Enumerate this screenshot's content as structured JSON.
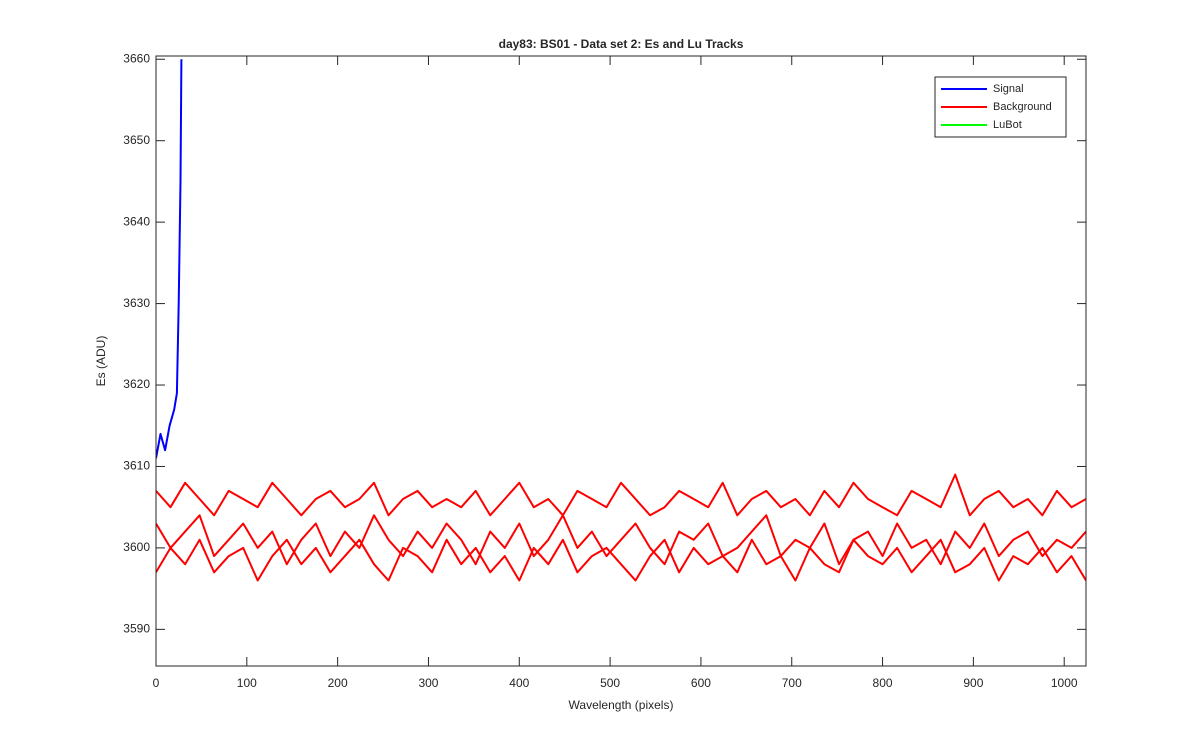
{
  "chart_data": {
    "type": "line",
    "title": "day83: BS01 - Data set 2: Es and Lu Tracks",
    "xlabel": "Wavelength (pixels)",
    "ylabel": "Es (ADU)",
    "xlim": [
      0,
      1024
    ],
    "ylim": [
      3585.5,
      3660.4
    ],
    "xticks": [
      0,
      100,
      200,
      300,
      400,
      500,
      600,
      700,
      800,
      900,
      1000
    ],
    "yticks": [
      3590,
      3600,
      3610,
      3620,
      3630,
      3640,
      3650,
      3660
    ],
    "grid": false,
    "legend": "northeast",
    "x": [
      0,
      16,
      32,
      48,
      64,
      80,
      96,
      112,
      128,
      144,
      160,
      176,
      192,
      208,
      224,
      240,
      256,
      272,
      288,
      304,
      320,
      336,
      352,
      368,
      384,
      400,
      416,
      432,
      448,
      464,
      480,
      496,
      512,
      528,
      544,
      560,
      576,
      592,
      608,
      624,
      640,
      656,
      672,
      688,
      704,
      720,
      736,
      752,
      768,
      784,
      800,
      816,
      832,
      848,
      864,
      880,
      896,
      912,
      928,
      944,
      960,
      976,
      992,
      1008,
      1024
    ],
    "series": [
      {
        "name": "Signal",
        "color": "#0000ff",
        "x": [
          0,
          5,
          10,
          15,
          20,
          23,
          25,
          27,
          28
        ],
        "values": [
          3611,
          3614,
          3612,
          3615,
          3617,
          3619,
          3630,
          3645,
          3660
        ]
      },
      {
        "name": "Background",
        "color": "#ff0000",
        "values": [
          3607,
          3605,
          3608,
          3606,
          3604,
          3607,
          3606,
          3605,
          3608,
          3606,
          3604,
          3606,
          3607,
          3605,
          3606,
          3608,
          3604,
          3606,
          3607,
          3605,
          3606,
          3605,
          3607,
          3604,
          3606,
          3608,
          3605,
          3606,
          3604,
          3607,
          3606,
          3605,
          3608,
          3606,
          3604,
          3605,
          3607,
          3606,
          3605,
          3608,
          3604,
          3606,
          3607,
          3605,
          3606,
          3604,
          3607,
          3605,
          3608,
          3606,
          3605,
          3604,
          3607,
          3606,
          3605,
          3609,
          3604,
          3606,
          3607,
          3605,
          3606,
          3604,
          3607,
          3605,
          3606
        ]
      },
      {
        "name": "LuBot",
        "color": "#00ff00",
        "x": [],
        "values": []
      },
      {
        "color": "#ff0000",
        "values": [
          3603,
          3600,
          3602,
          3604,
          3599,
          3601,
          3603,
          3600,
          3602,
          3598,
          3601,
          3603,
          3599,
          3602,
          3600,
          3604,
          3601,
          3599,
          3602,
          3600,
          3603,
          3601,
          3598,
          3602,
          3600,
          3603,
          3599,
          3601,
          3604,
          3600,
          3602,
          3599,
          3601,
          3603,
          3600,
          3598,
          3602,
          3601,
          3603,
          3599,
          3600,
          3602,
          3604,
          3599,
          3601,
          3600,
          3603,
          3598,
          3601,
          3602,
          3599,
          3603,
          3600,
          3601,
          3598,
          3602,
          3600,
          3603,
          3599,
          3601,
          3602,
          3599,
          3601,
          3600,
          3602
        ]
      },
      {
        "color": "#ff0000",
        "values": [
          3597,
          3600,
          3598,
          3601,
          3597,
          3599,
          3600,
          3596,
          3599,
          3601,
          3598,
          3600,
          3597,
          3599,
          3601,
          3598,
          3596,
          3600,
          3599,
          3597,
          3601,
          3598,
          3600,
          3597,
          3599,
          3596,
          3600,
          3598,
          3601,
          3597,
          3599,
          3600,
          3598,
          3596,
          3599,
          3601,
          3597,
          3600,
          3598,
          3599,
          3597,
          3601,
          3598,
          3599,
          3596,
          3600,
          3598,
          3597,
          3601,
          3599,
          3598,
          3600,
          3597,
          3599,
          3601,
          3597,
          3598,
          3600,
          3596,
          3599,
          3598,
          3600,
          3597,
          3599,
          3596
        ]
      }
    ]
  }
}
